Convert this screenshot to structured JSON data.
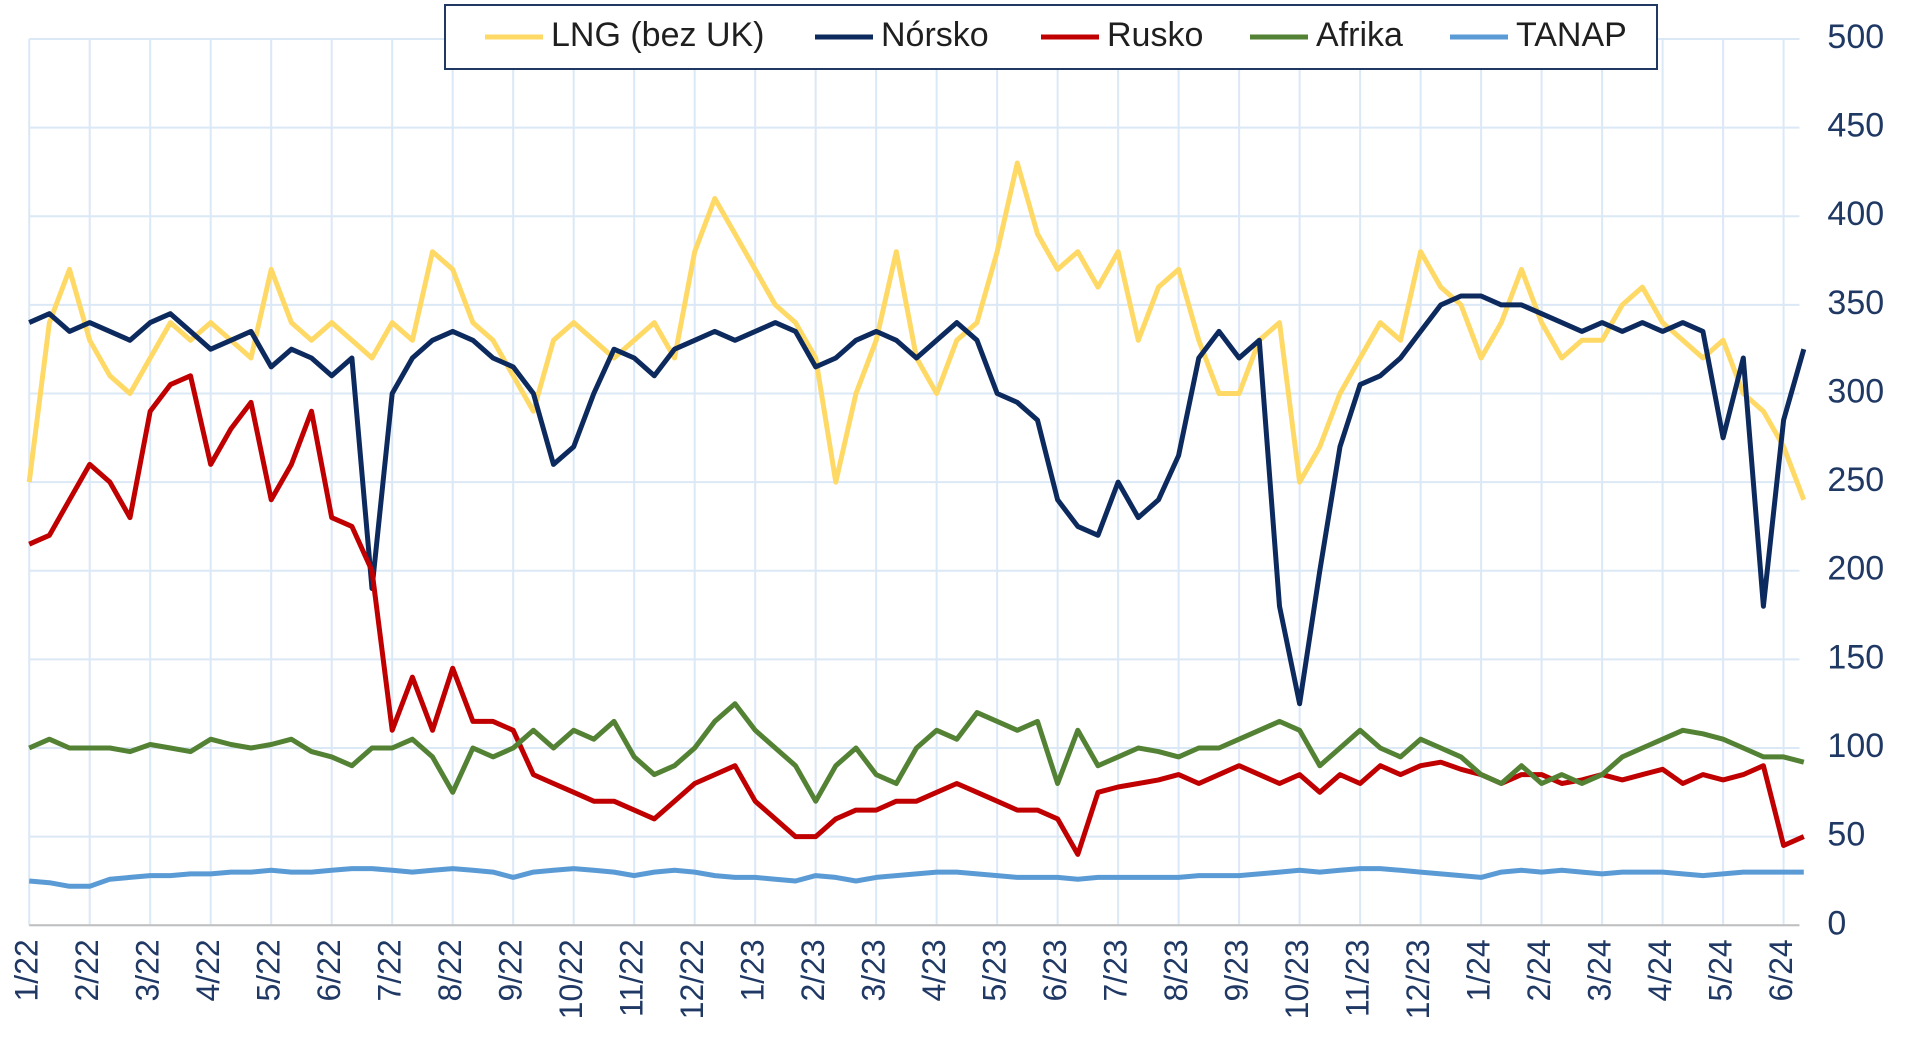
{
  "chart_data": {
    "type": "line",
    "categories": [
      "1/22",
      null,
      null,
      "2/22",
      null,
      null,
      "3/22",
      null,
      null,
      "4/22",
      null,
      null,
      "5/22",
      null,
      null,
      "6/22",
      null,
      null,
      "7/22",
      null,
      null,
      "8/22",
      null,
      null,
      "9/22",
      null,
      null,
      "10/22",
      null,
      null,
      "11/22",
      null,
      null,
      "12/22",
      null,
      null,
      "1/23",
      null,
      null,
      "2/23",
      null,
      null,
      "3/23",
      null,
      null,
      "4/23",
      null,
      null,
      "5/23",
      null,
      null,
      "6/23",
      null,
      null,
      "7/23",
      null,
      null,
      "8/23",
      null,
      null,
      "9/23",
      null,
      null,
      "10/23",
      null,
      null,
      "11/23",
      null,
      null,
      "12/23",
      null,
      null,
      "1/24",
      null,
      null,
      "2/24",
      null,
      null,
      "3/24",
      null,
      null,
      "4/24",
      null,
      null,
      "5/24",
      null,
      null,
      "6/24",
      null
    ],
    "series": [
      {
        "name": "LNG (bez UK)",
        "color": "#ffd966",
        "values": [
          250,
          340,
          370,
          330,
          310,
          300,
          320,
          340,
          330,
          340,
          330,
          320,
          370,
          340,
          330,
          340,
          330,
          320,
          340,
          330,
          380,
          370,
          340,
          330,
          310,
          290,
          330,
          340,
          330,
          320,
          330,
          340,
          320,
          380,
          410,
          390,
          370,
          350,
          340,
          320,
          250,
          300,
          330,
          380,
          320,
          300,
          330,
          340,
          380,
          430,
          390,
          370,
          380,
          360,
          380,
          330,
          360,
          370,
          330,
          300,
          300,
          330,
          340,
          250,
          270,
          300,
          320,
          340,
          330,
          380,
          360,
          350,
          320,
          340,
          370,
          340,
          320,
          330,
          330,
          350,
          360,
          340,
          330,
          320,
          330,
          300,
          290,
          270,
          240
        ]
      },
      {
        "name": "Nórsko",
        "color": "#0d2a5e",
        "values": [
          340,
          345,
          335,
          340,
          335,
          330,
          340,
          345,
          335,
          325,
          330,
          335,
          315,
          325,
          320,
          310,
          320,
          190,
          300,
          320,
          330,
          335,
          330,
          320,
          315,
          300,
          260,
          270,
          300,
          325,
          320,
          310,
          325,
          330,
          335,
          330,
          335,
          340,
          335,
          315,
          320,
          330,
          335,
          330,
          320,
          330,
          340,
          330,
          300,
          295,
          285,
          240,
          225,
          220,
          250,
          230,
          240,
          265,
          320,
          335,
          320,
          330,
          180,
          125,
          200,
          270,
          305,
          310,
          320,
          335,
          350,
          355,
          355,
          350,
          350,
          345,
          340,
          335,
          340,
          335,
          340,
          335,
          340,
          335,
          275,
          320,
          180,
          285,
          325
        ]
      },
      {
        "name": "Rusko",
        "color": "#c00000",
        "values": [
          215,
          220,
          240,
          260,
          250,
          230,
          290,
          305,
          310,
          260,
          280,
          295,
          240,
          260,
          290,
          230,
          225,
          200,
          110,
          140,
          110,
          145,
          115,
          115,
          110,
          85,
          80,
          75,
          70,
          70,
          65,
          60,
          70,
          80,
          85,
          90,
          70,
          60,
          50,
          50,
          60,
          65,
          65,
          70,
          70,
          75,
          80,
          75,
          70,
          65,
          65,
          60,
          40,
          75,
          78,
          80,
          82,
          85,
          80,
          85,
          90,
          85,
          80,
          85,
          75,
          85,
          80,
          90,
          85,
          90,
          92,
          88,
          85,
          80,
          85,
          85,
          80,
          82,
          85,
          82,
          85,
          88,
          80,
          85,
          82,
          85,
          90,
          45,
          50
        ]
      },
      {
        "name": "Afrika",
        "color": "#548235",
        "values": [
          100,
          105,
          100,
          100,
          100,
          98,
          102,
          100,
          98,
          105,
          102,
          100,
          102,
          105,
          98,
          95,
          90,
          100,
          100,
          105,
          95,
          75,
          100,
          95,
          100,
          110,
          100,
          110,
          105,
          115,
          95,
          85,
          90,
          100,
          115,
          125,
          110,
          100,
          90,
          70,
          90,
          100,
          85,
          80,
          100,
          110,
          105,
          120,
          115,
          110,
          115,
          80,
          110,
          90,
          95,
          100,
          98,
          95,
          100,
          100,
          105,
          110,
          115,
          110,
          90,
          100,
          110,
          100,
          95,
          105,
          100,
          95,
          85,
          80,
          90,
          80,
          85,
          80,
          85,
          95,
          100,
          105,
          110,
          108,
          105,
          100,
          95,
          95,
          92
        ]
      },
      {
        "name": "TANAP",
        "color": "#5b9bd5",
        "values": [
          25,
          24,
          22,
          22,
          26,
          27,
          28,
          28,
          29,
          29,
          30,
          30,
          31,
          30,
          30,
          31,
          32,
          32,
          31,
          30,
          31,
          32,
          31,
          30,
          27,
          30,
          31,
          32,
          31,
          30,
          28,
          30,
          31,
          30,
          28,
          27,
          27,
          26,
          25,
          28,
          27,
          25,
          27,
          28,
          29,
          30,
          30,
          29,
          28,
          27,
          27,
          27,
          26,
          27,
          27,
          27,
          27,
          27,
          28,
          28,
          28,
          29,
          30,
          31,
          30,
          31,
          32,
          32,
          31,
          30,
          29,
          28,
          27,
          30,
          31,
          30,
          31,
          30,
          29,
          30,
          30,
          30,
          29,
          28,
          29,
          30,
          30,
          30,
          30
        ]
      }
    ],
    "ylim": [
      0,
      500
    ],
    "yticks": [
      0,
      50,
      100,
      150,
      200,
      250,
      300,
      350,
      400,
      450,
      500
    ],
    "grid": true,
    "y_axis_side": "right",
    "legend": "top"
  }
}
